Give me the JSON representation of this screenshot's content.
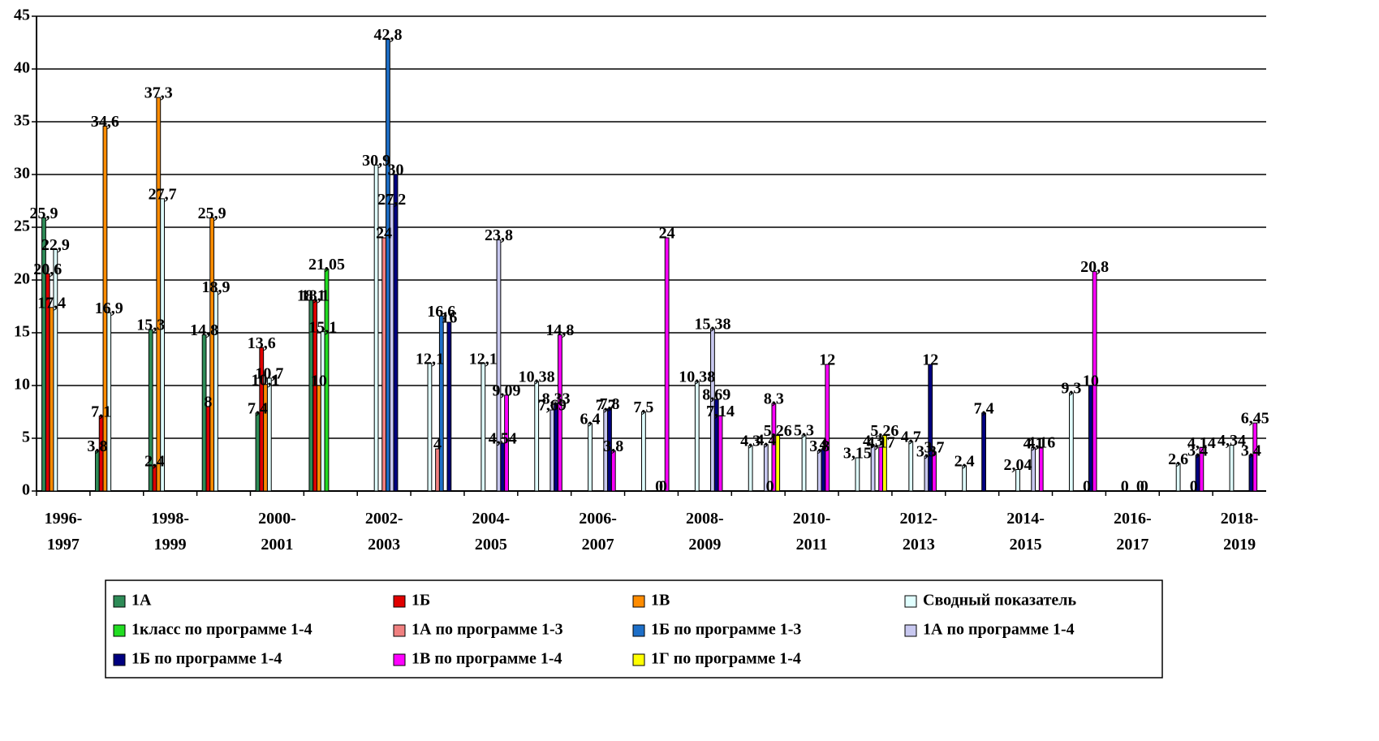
{
  "chart_data": {
    "type": "bar",
    "categories": [
      "1996-1997",
      null,
      "1998-1999",
      null,
      "2000-2001",
      null,
      "2002-2003",
      null,
      "2004-2005",
      null,
      "2006-2007",
      null,
      "2008-2009",
      null,
      "2010-2011",
      null,
      "2012-2013",
      null,
      "2014-2015",
      null,
      "2016-2017",
      null,
      "2018-2019"
    ],
    "ylim": [
      0,
      45
    ],
    "yticks": [
      0,
      5,
      10,
      15,
      20,
      25,
      30,
      35,
      40,
      45
    ],
    "grid": true,
    "series": [
      {
        "name": "1А",
        "color": "#2e8b57",
        "values": [
          25.9,
          3.8,
          15.3,
          14.8,
          7.4,
          18.1,
          null,
          null,
          null,
          null,
          null,
          null,
          null,
          null,
          null,
          null,
          null,
          null,
          null,
          null,
          null,
          null,
          null
        ],
        "value_labels": [
          "25,9",
          "3,8",
          "15,3",
          "14,8",
          "7,4",
          "18,1",
          null,
          null,
          null,
          null,
          null,
          null,
          null,
          null,
          null,
          null,
          null,
          null,
          null,
          null,
          null,
          null,
          null
        ]
      },
      {
        "name": "1Б",
        "color": "#e00000",
        "values": [
          20.6,
          7.1,
          2.4,
          8,
          13.6,
          18.1,
          null,
          null,
          null,
          null,
          null,
          null,
          null,
          null,
          null,
          null,
          null,
          null,
          null,
          null,
          null,
          null,
          null
        ],
        "value_labels": [
          "20,6",
          "7,1",
          "2,4",
          "8",
          "13,6",
          "18,1",
          null,
          null,
          null,
          null,
          null,
          null,
          null,
          null,
          null,
          null,
          null,
          null,
          null,
          null,
          null,
          null,
          null
        ]
      },
      {
        "name": "1В",
        "color": "#ff8c00",
        "values": [
          17.4,
          34.6,
          37.3,
          25.9,
          10.1,
          10,
          null,
          null,
          null,
          null,
          null,
          null,
          null,
          null,
          null,
          null,
          null,
          null,
          null,
          null,
          null,
          null,
          null
        ],
        "value_labels": [
          "17,4",
          "34,6",
          "37,3",
          "25,9",
          "10,1",
          "10",
          null,
          null,
          null,
          null,
          null,
          null,
          null,
          null,
          null,
          null,
          null,
          null,
          null,
          null,
          null,
          null,
          null
        ]
      },
      {
        "name": "Сводный показатель",
        "color": "#e0ffff",
        "values": [
          22.9,
          16.9,
          27.7,
          18.9,
          10.7,
          15.1,
          30.9,
          12.1,
          12.1,
          10.38,
          6.4,
          7.5,
          10.38,
          4.3,
          5.3,
          3.15,
          4.7,
          2.4,
          2.04,
          9.3,
          0,
          2.6,
          4.34
        ],
        "value_labels": [
          "22,9",
          "16,9",
          "27,7",
          "18,9",
          "10,7",
          "15,1",
          "30,9",
          "12,1",
          "12,1",
          "10,38",
          "6,4",
          "7,5",
          "10,38",
          "4,3",
          "5,3",
          "3,15",
          "4,7",
          "2,4",
          "2,04",
          "9,3",
          "0",
          "2,6",
          "4,34"
        ]
      },
      {
        "name": "1класс по программе 1-4",
        "color": "#22dd22",
        "values": [
          null,
          null,
          null,
          null,
          null,
          21.05,
          null,
          null,
          null,
          null,
          null,
          null,
          null,
          null,
          null,
          null,
          null,
          null,
          null,
          null,
          null,
          null,
          null
        ],
        "value_labels": [
          null,
          null,
          null,
          null,
          null,
          "21,05",
          null,
          null,
          null,
          null,
          null,
          null,
          null,
          null,
          null,
          null,
          null,
          null,
          null,
          null,
          null,
          null,
          null
        ]
      },
      {
        "name": "1А по программе 1-3",
        "color": "#f08080",
        "values": [
          null,
          null,
          null,
          null,
          null,
          null,
          24,
          4,
          null,
          null,
          null,
          null,
          null,
          null,
          null,
          null,
          null,
          null,
          null,
          null,
          null,
          null,
          null
        ],
        "value_labels": [
          null,
          null,
          null,
          null,
          null,
          null,
          "24",
          "4",
          null,
          null,
          null,
          null,
          null,
          null,
          null,
          null,
          null,
          null,
          null,
          null,
          null,
          null,
          null
        ]
      },
      {
        "name": "1Б по программе 1-3",
        "color": "#1e6fc8",
        "values": [
          null,
          null,
          null,
          null,
          null,
          null,
          42.8,
          16.6,
          null,
          null,
          null,
          null,
          null,
          null,
          null,
          null,
          null,
          null,
          null,
          null,
          null,
          null,
          null
        ],
        "value_labels": [
          null,
          null,
          null,
          null,
          null,
          null,
          "42,8",
          "16,6",
          null,
          null,
          null,
          null,
          null,
          null,
          null,
          null,
          null,
          null,
          null,
          null,
          null,
          null,
          null
        ]
      },
      {
        "name": "1А по программе 1-4",
        "color": "#c8c8f0",
        "values": [
          null,
          null,
          null,
          null,
          null,
          null,
          27.2,
          null,
          23.8,
          7.69,
          7.7,
          0,
          15.38,
          4.4,
          3.8,
          4.3,
          3.3,
          null,
          4.1,
          0,
          0,
          0,
          null
        ],
        "value_labels": [
          null,
          null,
          null,
          null,
          null,
          null,
          "27,2",
          null,
          "23,8",
          "7,69",
          "7,7",
          "0",
          "15,38",
          "4,4",
          "3,8",
          "4,3",
          "3,3",
          null,
          "4,1",
          "0",
          "0",
          "0",
          null
        ]
      },
      {
        "name": "1Б по программе 1-4",
        "color": "#000080",
        "values": [
          null,
          null,
          null,
          null,
          null,
          null,
          30,
          16,
          4.54,
          8.33,
          7.8,
          0,
          8.69,
          0,
          4,
          null,
          12,
          7.4,
          null,
          10,
          0,
          3.4,
          3.4
        ],
        "value_labels": [
          null,
          null,
          null,
          null,
          null,
          null,
          "30",
          "16",
          "4,54",
          "8,33",
          "7,8",
          "0",
          "8,69",
          "0",
          "4",
          null,
          "12",
          "7,4",
          null,
          "10",
          "0",
          "3,4",
          "3,4"
        ]
      },
      {
        "name": "1В по программе 1-4",
        "color": "#ff00ff",
        "values": [
          null,
          null,
          null,
          null,
          null,
          null,
          null,
          null,
          9.09,
          14.8,
          3.8,
          24,
          7.14,
          8.3,
          12,
          4.17,
          3.7,
          null,
          4.16,
          20.8,
          null,
          4.14,
          6.45
        ],
        "value_labels": [
          null,
          null,
          null,
          null,
          null,
          null,
          null,
          null,
          "9,09",
          "14,8",
          "3,8",
          "24",
          "7,14",
          "8,3",
          "12",
          "4,17",
          "3,7",
          null,
          "4,16",
          "20,8",
          null,
          "4,14",
          "6,45"
        ]
      },
      {
        "name": "1Г по программе 1-4",
        "color": "#ffff00",
        "values": [
          null,
          null,
          null,
          null,
          null,
          null,
          null,
          null,
          null,
          null,
          null,
          null,
          null,
          5.26,
          null,
          5.26,
          null,
          null,
          null,
          null,
          null,
          null,
          null
        ],
        "value_labels": [
          null,
          null,
          null,
          null,
          null,
          null,
          null,
          null,
          null,
          null,
          null,
          null,
          null,
          "5,26",
          null,
          "5,26",
          null,
          null,
          null,
          null,
          null,
          null,
          null
        ]
      }
    ]
  }
}
